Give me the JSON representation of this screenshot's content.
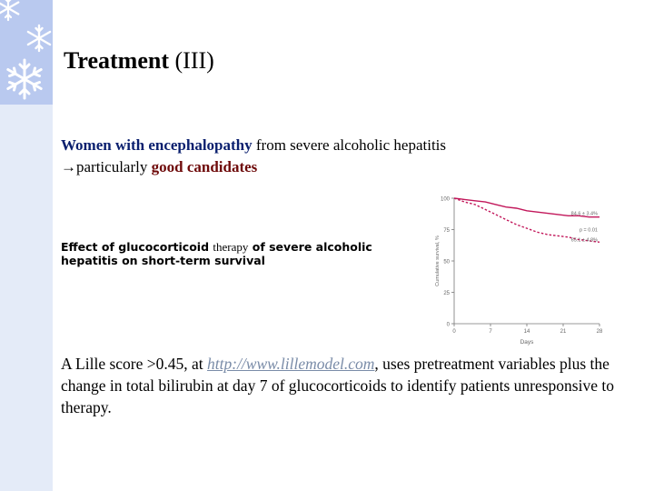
{
  "slide": {
    "title": "Treatment",
    "title_suffix": " (III)",
    "intro": {
      "line1_highlight": "Women with encephalopathy",
      "line1_rest": " from severe alcoholic hepatitis",
      "line2_arrow": "→",
      "line2_start": "particularly ",
      "line2_highlight": "good candidates"
    },
    "caption": {
      "part1": "Effect of glucocorticoid ",
      "part2": "therapy",
      "part3": " of severe alcoholic hepatitis on short-term survival"
    },
    "paragraph": {
      "before_link": "A Lille score >0.45, at ",
      "link_text": "http://www.lillemodel.com",
      "after_link": ", uses pretreatment variables plus the change in total bilirubin at day 7 of glucocorticoids to identify patients unresponsive to therapy."
    }
  },
  "chart_data": {
    "type": "line",
    "xlabel": "Days",
    "ylabel": "Cumulative survival, %",
    "x_ticks": [
      "0",
      "7",
      "14",
      "21",
      "28"
    ],
    "y_ticks": [
      "0",
      "25",
      "50",
      "75",
      "100"
    ],
    "xlim": [
      0,
      28
    ],
    "ylim": [
      0,
      100
    ],
    "series": [
      {
        "style": "solid",
        "x": [
          0,
          2,
          4,
          6,
          8,
          10,
          12,
          14,
          16,
          18,
          20,
          22,
          24,
          26,
          28
        ],
        "y": [
          100,
          99,
          98,
          97,
          95,
          93,
          92,
          90,
          89,
          88,
          87,
          86,
          86,
          85,
          85
        ]
      },
      {
        "style": "dashed",
        "x": [
          0,
          2,
          4,
          6,
          8,
          10,
          12,
          14,
          16,
          18,
          20,
          22,
          24,
          26,
          28
        ],
        "y": [
          100,
          97,
          95,
          91,
          87,
          83,
          79,
          76,
          73,
          71,
          70,
          69,
          67,
          66,
          65
        ]
      }
    ],
    "annotations": [
      {
        "text": "84.6 ± 3.4%",
        "series": 0
      },
      {
        "text": "p = 0.01",
        "series": null
      },
      {
        "text": "65.1 ± 4.8%",
        "series": 1
      }
    ],
    "colors": {
      "line": "#c2185b",
      "axis": "#777777",
      "text": "#666666"
    }
  }
}
